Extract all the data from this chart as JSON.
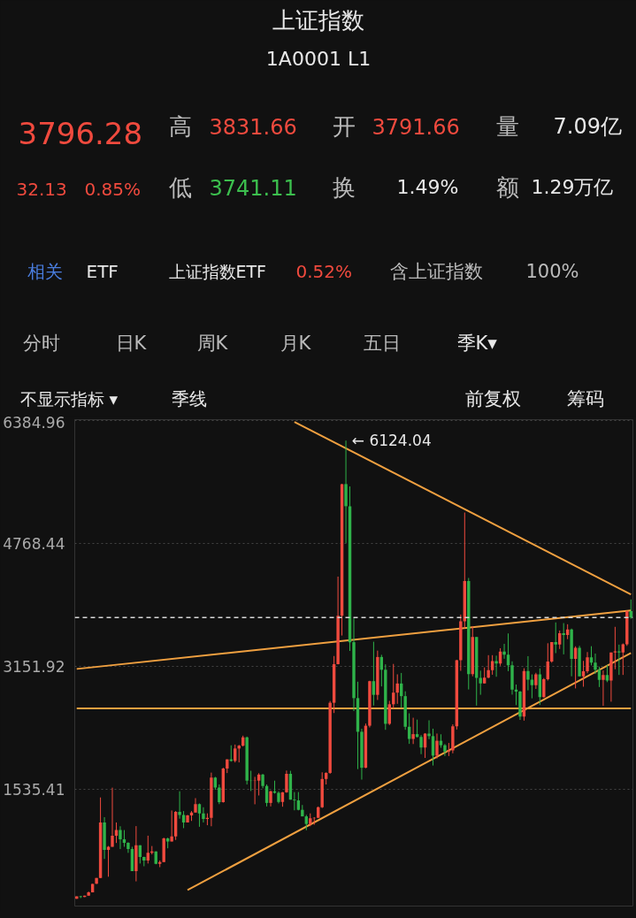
{
  "chart_data": {
    "type": "candlestick",
    "title": "上证指数",
    "subtitle": "1A0001 L1",
    "categories": [
      null,
      null,
      null,
      null,
      null,
      null,
      null,
      null,
      null,
      null,
      null,
      null,
      null,
      null,
      null,
      null,
      null,
      null,
      null,
      null,
      null,
      null,
      null,
      null,
      null,
      null,
      null,
      null,
      null,
      null,
      null,
      null,
      null,
      null,
      null,
      null,
      null,
      null,
      null,
      null,
      null,
      null,
      null,
      null,
      null,
      null,
      null,
      null,
      null,
      null,
      null,
      null,
      null,
      null,
      null,
      null,
      null,
      null,
      null,
      null,
      null,
      null,
      null,
      null,
      null,
      null,
      null,
      null,
      null,
      null,
      null,
      null,
      null,
      null,
      null,
      null,
      null,
      null,
      null,
      null,
      null,
      null,
      null,
      null,
      null,
      null,
      null,
      null,
      null,
      null,
      null,
      null,
      null,
      null,
      null,
      null,
      null,
      null,
      null,
      null,
      null,
      null,
      null,
      null,
      null,
      null,
      null,
      null,
      null,
      null,
      null,
      null,
      null,
      null,
      null,
      null,
      null,
      null,
      null,
      null,
      null,
      null,
      null,
      null,
      null,
      null,
      null,
      null,
      null,
      null,
      null,
      null,
      null,
      null,
      null,
      null,
      null,
      null,
      null,
      null,
      null
    ],
    "colors": [
      "#f04a3e",
      "#2fb34a",
      "#f04a3e",
      "#f04a3e",
      "#f04a3e",
      "#f04a3e",
      "#f04a3e",
      "#2fb34a",
      "#f04a3e",
      "#f04a3e",
      "#f04a3e",
      "#2fb34a",
      "#2fb34a",
      "#2fb34a",
      "#2fb34a",
      "#f04a3e",
      "#2fb34a",
      "#2fb34a",
      "#f04a3e",
      "#f04a3e",
      "#2fb34a",
      "#f04a3e",
      "#f04a3e",
      "#2fb34a",
      "#f04a3e",
      "#f04a3e",
      "#2fb34a",
      "#2fb34a",
      "#f04a3e",
      "#f04a3e",
      "#f04a3e",
      "#2fb34a",
      "#2fb34a",
      "#f04a3e",
      "#f04a3e",
      "#2fb34a",
      "#2fb34a",
      "#f04a3e",
      "#f04a3e",
      "#2fb34a",
      "#f04a3e",
      "#f04a3e",
      "#f04a3e",
      "#2fb34a",
      "#2fb34a",
      "#f04a3e",
      "#f04a3e",
      "#2fb34a",
      "#2fb34a",
      "#f04a3e",
      "#2fb34a",
      "#2fb34a",
      "#f04a3e",
      "#f04a3e",
      "#2fb34a",
      "#2fb34a",
      "#2fb34a",
      "#2fb34a",
      "#2fb34a",
      "#f04a3e",
      "#f04a3e",
      "#f04a3e",
      "#f04a3e",
      "#f04a3e",
      "#f04a3e",
      "#f04a3e",
      "#f04a3e",
      "#f04a3e",
      "#2fb34a",
      "#2fb34a",
      "#2fb34a",
      "#2fb34a",
      "#2fb34a",
      "#f04a3e",
      "#f04a3e",
      "#2fb34a",
      "#f04a3e",
      "#2fb34a",
      "#2fb34a",
      "#f04a3e",
      "#f04a3e",
      "#f04a3e",
      "#2fb34a",
      "#2fb34a",
      "#2fb34a",
      "#f04a3e",
      "#2fb34a",
      "#2fb34a",
      "#f04a3e",
      "#2fb34a",
      "#2fb34a",
      "#f04a3e",
      "#2fb34a",
      "#2fb34a",
      "#f04a3e",
      "#f04a3e",
      "#f04a3e",
      "#f04a3e",
      "#f04a3e",
      "#2fb34a",
      "#f04a3e",
      "#2fb34a",
      "#2fb34a",
      "#f04a3e",
      "#f04a3e",
      "#f04a3e",
      "#2fb34a",
      "#f04a3e",
      "#2fb34a",
      "#2fb34a",
      "#2fb34a",
      "#2fb34a",
      "#2fb34a",
      "#f04a3e",
      "#2fb34a",
      "#2fb34a",
      "#f04a3e",
      "#2fb34a",
      "#f04a3e",
      "#f04a3e",
      "#f04a3e",
      "#2fb34a",
      "#f04a3e",
      "#2fb34a",
      "#f04a3e",
      "#2fb34a",
      "#f04a3e",
      "#2fb34a",
      "#f04a3e",
      "#f04a3e",
      "#2fb34a",
      "#2fb34a",
      "#2fb34a",
      "#f04a3e",
      "#2fb34a",
      "#f04a3e",
      "#f04a3e",
      "#2fb34a",
      "#f04a3e",
      "#f04a3e",
      "#2fb34a"
    ],
    "ohlc": [
      [
        96,
        127,
        95,
        127
      ],
      [
        128,
        135,
        105,
        120
      ],
      [
        120,
        137,
        118,
        137
      ],
      [
        137,
        191,
        136,
        180
      ],
      [
        180,
        292,
        180,
        292
      ],
      [
        293,
        370,
        290,
        370
      ],
      [
        370,
        1429,
        370,
        1100
      ],
      [
        1100,
        1170,
        620,
        740
      ],
      [
        740,
        790,
        386,
        780
      ],
      [
        780,
        1558,
        780,
        925
      ],
      [
        925,
        1100,
        830,
        1000
      ],
      [
        1000,
        1050,
        750,
        880
      ],
      [
        880,
        1000,
        780,
        833
      ],
      [
        833,
        840,
        700,
        750
      ],
      [
        750,
        780,
        460,
        460
      ],
      [
        460,
        1052,
        325,
        800
      ],
      [
        800,
        800,
        560,
        647
      ],
      [
        647,
        650,
        524,
        600
      ],
      [
        600,
        926,
        560,
        700
      ],
      [
        700,
        790,
        680,
        720
      ],
      [
        720,
        720,
        550,
        555
      ],
      [
        555,
        600,
        512,
        580
      ],
      [
        580,
        900,
        580,
        890
      ],
      [
        890,
        900,
        760,
        850
      ],
      [
        850,
        1258,
        850,
        917
      ],
      [
        917,
        1250,
        870,
        1240
      ],
      [
        1240,
        1510,
        1150,
        1200
      ],
      [
        1200,
        1250,
        1025,
        1100
      ],
      [
        1100,
        1200,
        1100,
        1194
      ],
      [
        1194,
        1250,
        1120,
        1230
      ],
      [
        1230,
        1420,
        1230,
        1340
      ],
      [
        1340,
        1350,
        1043,
        1220
      ],
      [
        1220,
        1300,
        1100,
        1147
      ],
      [
        1147,
        1220,
        1064,
        1160
      ],
      [
        1160,
        1756,
        1050,
        1690
      ],
      [
        1690,
        1700,
        1530,
        1560
      ],
      [
        1560,
        1600,
        1341,
        1367
      ],
      [
        1367,
        1820,
        1361,
        1810
      ],
      [
        1810,
        1930,
        1750,
        1930
      ],
      [
        1930,
        2115,
        1900,
        1910
      ],
      [
        1910,
        2125,
        1890,
        2073
      ],
      [
        2073,
        2120,
        1890,
        2110
      ],
      [
        2110,
        2242,
        2100,
        2220
      ],
      [
        2220,
        2230,
        1600,
        1650
      ],
      [
        1650,
        1780,
        1514,
        1646
      ],
      [
        1646,
        1700,
        1339,
        1650
      ],
      [
        1650,
        1748,
        1455,
        1730
      ],
      [
        1730,
        1740,
        1550,
        1580
      ],
      [
        1580,
        1600,
        1311,
        1357
      ],
      [
        1357,
        1520,
        1311,
        1510
      ],
      [
        1510,
        1650,
        1480,
        1490
      ],
      [
        1490,
        1510,
        1350,
        1370
      ],
      [
        1370,
        1500,
        1307,
        1497
      ],
      [
        1497,
        1783,
        1490,
        1740
      ],
      [
        1740,
        1780,
        1400,
        1400
      ],
      [
        1400,
        1500,
        1260,
        1390
      ],
      [
        1390,
        1500,
        1259,
        1266
      ],
      [
        1266,
        1330,
        1180,
        1180
      ],
      [
        1180,
        1200,
        998,
        1080
      ],
      [
        1080,
        1220,
        1050,
        1155
      ],
      [
        1155,
        1170,
        1070,
        1161
      ],
      [
        1161,
        1310,
        1160,
        1300
      ],
      [
        1300,
        1760,
        1290,
        1672
      ],
      [
        1672,
        1760,
        1600,
        1752
      ],
      [
        1752,
        2698,
        1740,
        2675
      ],
      [
        2675,
        3290,
        2540,
        3183
      ],
      [
        3183,
        4335,
        3180,
        3820
      ],
      [
        3820,
        5555,
        3560,
        5552
      ],
      [
        5552,
        6124.04,
        4778,
        5261
      ],
      [
        5261,
        5522,
        3357,
        3472
      ],
      [
        3472,
        3786,
        2566,
        2736
      ],
      [
        2736,
        2952,
        1802,
        2293
      ],
      [
        2293,
        2333,
        1664,
        1820
      ],
      [
        1820,
        2402,
        1814,
        2373
      ],
      [
        2373,
        2965,
        2350,
        2959
      ],
      [
        2959,
        3478,
        2639,
        2779
      ],
      [
        2779,
        3361,
        2712,
        3277
      ],
      [
        3277,
        3306,
        2890,
        3109
      ],
      [
        3109,
        3181,
        2319,
        2398
      ],
      [
        2398,
        2700,
        2382,
        2655
      ],
      [
        2655,
        3186,
        2600,
        2808
      ],
      [
        2808,
        3049,
        2661,
        2928
      ],
      [
        2928,
        3067,
        2610,
        2762
      ],
      [
        2762,
        2826,
        2319,
        2359
      ],
      [
        2359,
        2536,
        2134,
        2199
      ],
      [
        2199,
        2478,
        2132,
        2262
      ],
      [
        2262,
        2453,
        2219,
        2225
      ],
      [
        2225,
        2250,
        1999,
        2086
      ],
      [
        2086,
        2276,
        1949,
        2269
      ],
      [
        2269,
        2444,
        2196,
        2236
      ],
      [
        2236,
        2334,
        1849,
        1979
      ],
      [
        1979,
        2270,
        1941,
        2175
      ],
      [
        2175,
        2260,
        2083,
        2116
      ],
      [
        2116,
        2132,
        1975,
        2033
      ],
      [
        2033,
        2146,
        1974,
        2048
      ],
      [
        2048,
        2391,
        2010,
        2364
      ],
      [
        2364,
        3239,
        2323,
        3234
      ],
      [
        3234,
        3835,
        3095,
        3748
      ],
      [
        3748,
        5178,
        3654,
        4277
      ],
      [
        4277,
        4317,
        2850,
        3052
      ],
      [
        3052,
        3684,
        3023,
        3539
      ],
      [
        3539,
        3539,
        2638,
        3003
      ],
      [
        3003,
        3097,
        2780,
        2930
      ],
      [
        2930,
        3140,
        2929,
        3004
      ],
      [
        3004,
        3301,
        2998,
        3104
      ],
      [
        3104,
        3301,
        3044,
        3223
      ],
      [
        3223,
        3295,
        3017,
        3192
      ],
      [
        3192,
        3392,
        3162,
        3349
      ],
      [
        3349,
        3450,
        3254,
        3307
      ],
      [
        3307,
        3587,
        3091,
        3168
      ],
      [
        3168,
        3220,
        2782,
        2847
      ],
      [
        2847,
        2915,
        2644,
        2821
      ],
      [
        2821,
        2831,
        2449,
        2494
      ],
      [
        2494,
        3129,
        2440,
        3091
      ],
      [
        3091,
        3288,
        2838,
        2979
      ],
      [
        2979,
        3048,
        2733,
        2905
      ],
      [
        2905,
        3069,
        2857,
        3050
      ],
      [
        3050,
        3127,
        2646,
        2750
      ],
      [
        2750,
        3000,
        2742,
        2985
      ],
      [
        2985,
        3458,
        2967,
        3218
      ],
      [
        3218,
        3474,
        3202,
        3473
      ],
      [
        3473,
        3732,
        3328,
        3441
      ],
      [
        3441,
        3626,
        3383,
        3591
      ],
      [
        3591,
        3723,
        3312,
        3568
      ],
      [
        3568,
        3708,
        3512,
        3640
      ],
      [
        3640,
        3651,
        3023,
        3253
      ],
      [
        3253,
        3418,
        2864,
        3399
      ],
      [
        3399,
        3424,
        3021,
        3024
      ],
      [
        3024,
        3226,
        2886,
        3089
      ],
      [
        3089,
        3342,
        3063,
        3273
      ],
      [
        3273,
        3419,
        3167,
        3202
      ],
      [
        3202,
        3322,
        3054,
        3110
      ],
      [
        3110,
        3150,
        2882,
        2975
      ],
      [
        2975,
        3100,
        2635,
        3041
      ],
      [
        3041,
        3174,
        2946,
        2967
      ],
      [
        2967,
        3336,
        2689,
        3336
      ],
      [
        3336,
        3674,
        3116,
        3352
      ],
      [
        3352,
        3440,
        3041,
        3336
      ],
      [
        3336,
        3455,
        3041,
        3444
      ],
      [
        3444,
        3888,
        3424,
        3882
      ],
      [
        3882,
        4034,
        3780,
        3796.28
      ]
    ],
    "series": [
      {
        "type": "line",
        "color": "#f0a040",
        "values": [
          null,
          null,
          null,
          null,
          null,
          null,
          null,
          null,
          null,
          null,
          null,
          null,
          null,
          null,
          null,
          null,
          null,
          null,
          null,
          null,
          null,
          null,
          null,
          null,
          null,
          null,
          null,
          null,
          null,
          null,
          null,
          null,
          null,
          null,
          null,
          null,
          null,
          null,
          null,
          null,
          null,
          null,
          null,
          null,
          null,
          null,
          null,
          null,
          null,
          null,
          null,
          null,
          null,
          null,
          null,
          6370,
          null,
          null,
          null,
          null,
          null,
          null,
          null,
          null,
          null,
          null,
          null,
          null,
          null,
          null,
          null,
          null,
          null,
          null,
          null,
          null,
          null,
          null,
          null,
          null,
          null,
          null,
          null,
          null,
          null,
          null,
          null,
          null,
          null,
          null,
          null,
          null,
          null,
          null,
          null,
          null,
          null,
          null,
          null,
          null,
          null,
          null,
          null,
          null,
          null,
          null,
          null,
          null,
          null,
          null,
          null,
          null,
          null,
          null,
          null,
          null,
          null,
          null,
          null,
          null,
          null,
          null,
          null,
          null,
          null,
          null,
          null,
          null,
          null,
          null,
          null,
          null,
          null,
          null,
          null,
          null,
          null,
          null,
          null,
          null,
          4100
        ]
      },
      {
        "type": "line",
        "color": "#f0a040",
        "values": [
          3120,
          null,
          null,
          null,
          null,
          null,
          null,
          null,
          null,
          null,
          null,
          null,
          null,
          null,
          null,
          null,
          null,
          null,
          null,
          null,
          null,
          null,
          null,
          null,
          null,
          null,
          null,
          null,
          null,
          null,
          null,
          null,
          null,
          null,
          null,
          null,
          null,
          null,
          null,
          null,
          null,
          null,
          null,
          null,
          null,
          null,
          null,
          null,
          null,
          null,
          null,
          null,
          null,
          null,
          null,
          null,
          null,
          null,
          null,
          null,
          null,
          null,
          null,
          null,
          null,
          null,
          null,
          null,
          null,
          null,
          null,
          null,
          null,
          null,
          null,
          null,
          null,
          null,
          null,
          null,
          null,
          null,
          null,
          null,
          null,
          null,
          null,
          null,
          null,
          null,
          null,
          null,
          null,
          null,
          null,
          null,
          null,
          null,
          null,
          null,
          null,
          null,
          null,
          null,
          null,
          null,
          null,
          null,
          null,
          null,
          null,
          null,
          null,
          null,
          null,
          null,
          null,
          null,
          null,
          null,
          null,
          null,
          null,
          null,
          null,
          null,
          null,
          null,
          null,
          null,
          null,
          null,
          null,
          null,
          null,
          null,
          null,
          null,
          null,
          null,
          3890
        ]
      },
      {
        "type": "line",
        "color": "#f0a040",
        "values": [
          2600,
          null,
          null,
          null,
          null,
          null,
          null,
          null,
          null,
          null,
          null,
          null,
          null,
          null,
          null,
          null,
          null,
          null,
          null,
          null,
          null,
          null,
          null,
          null,
          null,
          null,
          null,
          null,
          null,
          null,
          null,
          null,
          null,
          null,
          null,
          null,
          null,
          null,
          null,
          null,
          null,
          null,
          null,
          null,
          null,
          null,
          null,
          null,
          null,
          null,
          null,
          null,
          null,
          null,
          null,
          null,
          null,
          null,
          null,
          null,
          null,
          null,
          null,
          null,
          null,
          null,
          null,
          null,
          null,
          null,
          null,
          null,
          null,
          null,
          null,
          null,
          null,
          null,
          null,
          null,
          null,
          null,
          null,
          null,
          null,
          null,
          null,
          null,
          null,
          null,
          null,
          null,
          null,
          null,
          null,
          null,
          null,
          null,
          null,
          null,
          null,
          null,
          null,
          null,
          null,
          null,
          null,
          null,
          null,
          null,
          null,
          null,
          null,
          null,
          null,
          null,
          null,
          null,
          null,
          null,
          null,
          null,
          null,
          null,
          null,
          null,
          null,
          null,
          null,
          null,
          null,
          null,
          null,
          null,
          null,
          null,
          null,
          null,
          null,
          null,
          2600
        ]
      },
      {
        "type": "line",
        "color": "#f0a040",
        "values": [
          null,
          null,
          null,
          null,
          null,
          null,
          null,
          null,
          null,
          null,
          null,
          null,
          null,
          null,
          null,
          null,
          null,
          null,
          null,
          null,
          null,
          null,
          null,
          null,
          null,
          null,
          null,
          null,
          210,
          null,
          null,
          null,
          null,
          null,
          null,
          null,
          null,
          null,
          null,
          null,
          null,
          null,
          null,
          null,
          null,
          null,
          null,
          null,
          null,
          null,
          null,
          null,
          null,
          null,
          null,
          null,
          null,
          null,
          null,
          null,
          null,
          null,
          null,
          null,
          null,
          null,
          null,
          null,
          null,
          null,
          null,
          null,
          null,
          null,
          null,
          null,
          null,
          null,
          null,
          null,
          null,
          null,
          null,
          null,
          null,
          null,
          null,
          null,
          null,
          null,
          null,
          null,
          null,
          null,
          null,
          null,
          null,
          null,
          null,
          null,
          null,
          null,
          null,
          null,
          null,
          null,
          null,
          null,
          null,
          null,
          null,
          null,
          null,
          null,
          null,
          null,
          null,
          null,
          null,
          null,
          null,
          null,
          null,
          null,
          null,
          null,
          null,
          null,
          null,
          null,
          null,
          null,
          null,
          null,
          null,
          null,
          null,
          null,
          null,
          null,
          3330
        ]
      }
    ],
    "ylim": [
      0,
      6400
    ],
    "yticks": [
      6384.96,
      4768.44,
      3151.92,
      1535.41
    ],
    "grid": "y",
    "tick_labels": "y",
    "ref_lines": [
      {
        "axis": "y",
        "value": 3796.28,
        "color": "#d8d8d8",
        "line_style": "dashed"
      }
    ],
    "annotations": [
      "3796.28",
      "高",
      "3831.66",
      "开",
      "3791.66",
      "量",
      "7.09亿",
      "32.13",
      "0.85%",
      "低",
      "3741.11",
      "换",
      "1.49%",
      "额",
      "1.29万亿",
      "相关",
      "ETF",
      "上证指数ETF",
      "0.52%",
      "含上证指数",
      "100%",
      "分时",
      "日K",
      "周K",
      "月K",
      "五日",
      "季K▾",
      "不显示指标 ▾",
      "季线",
      "前复权",
      "筹码",
      "← 6124.04"
    ]
  }
}
